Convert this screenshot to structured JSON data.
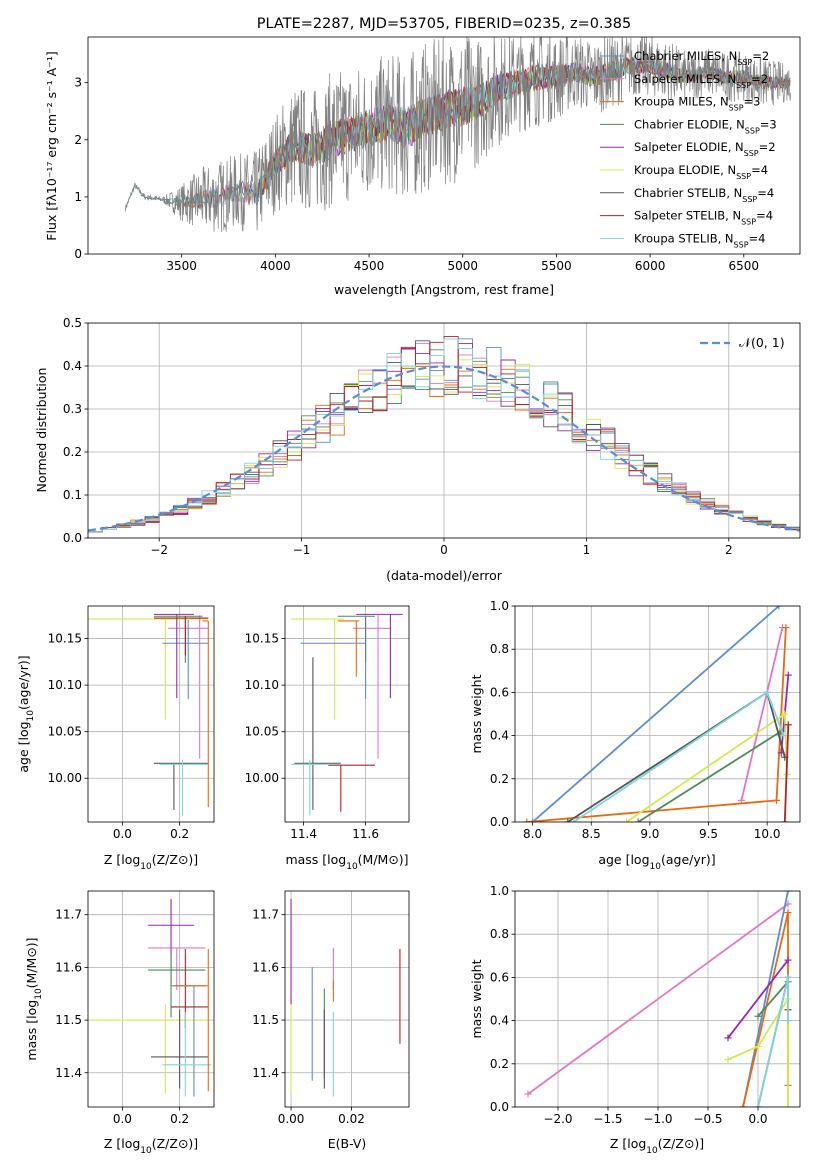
{
  "chart_data": [
    {
      "id": "spectrum",
      "type": "line",
      "title": "PLATE=2287, MJD=53705, FIBERID=0235, z=0.385",
      "xlabel": "wavelength [Angstrom, rest frame]",
      "ylabel": "Flux [fλ10⁻¹⁷ erg cm⁻² s⁻¹ A⁻¹]",
      "xlim": [
        3000,
        6800
      ],
      "ylim": [
        0,
        3.8
      ],
      "xticks": [
        3500,
        4000,
        4500,
        5000,
        5500,
        6000,
        6500
      ],
      "yticks": [
        0,
        1,
        2,
        3
      ],
      "legend_position": "upper-right",
      "data_curve": {
        "x": [
          3200,
          3250,
          3300,
          3400,
          3500,
          3600,
          3700,
          3800,
          3900,
          4000,
          4100,
          4200,
          4300,
          4400,
          4500,
          4600,
          4700,
          4800,
          4900,
          5000,
          5100,
          5200,
          5300,
          5400,
          5500,
          5600,
          5700,
          5800,
          5900,
          6000,
          6100,
          6200,
          6300,
          6400,
          6500,
          6600,
          6750
        ],
        "y": [
          0.8,
          1.2,
          1.0,
          0.95,
          0.9,
          0.95,
          1.0,
          1.1,
          1.05,
          1.6,
          1.9,
          1.8,
          2.0,
          2.1,
          2.2,
          2.3,
          2.2,
          2.4,
          2.5,
          2.6,
          2.7,
          2.9,
          3.0,
          3.1,
          3.1,
          3.2,
          3.1,
          3.2,
          3.3,
          3.3,
          3.2,
          3.1,
          3.2,
          3.1,
          3.1,
          3.0,
          3.0
        ],
        "noise": [
          0.05,
          0.05,
          0.05,
          0.05,
          0.3,
          0.5,
          0.6,
          0.6,
          0.7,
          0.8,
          1.0,
          1.0,
          1.1,
          1.1,
          1.1,
          1.1,
          1.2,
          1.2,
          1.2,
          1.2,
          1.0,
          0.9,
          0.8,
          0.8,
          0.7,
          0.6,
          0.6,
          0.6,
          0.5,
          0.5,
          0.5,
          0.4,
          0.4,
          0.4,
          0.4,
          0.4,
          0.3
        ]
      },
      "series": [
        {
          "name": "Chabrier MILES, N_SSP=2",
          "label_main": "Chabrier MILES, N",
          "label_sub": "SSP",
          "label_end": "=2",
          "color": "#5b8cd6"
        },
        {
          "name": "Salpeter MILES, N_SSP=2",
          "label_main": "Salpeter MILES, N",
          "label_sub": "SSP",
          "label_end": "=2",
          "color": "#e377c2"
        },
        {
          "name": "Kroupa MILES, N_SSP=3",
          "label_main": "Kroupa MILES, N",
          "label_sub": "SSP",
          "label_end": "=3",
          "color": "#e86a10"
        },
        {
          "name": "Chabrier ELODIE, N_SSP=3",
          "label_main": "Chabrier ELODIE, N",
          "label_sub": "SSP",
          "label_end": "=3",
          "color": "#4f8a5b"
        },
        {
          "name": "Salpeter ELODIE, N_SSP=2",
          "label_main": "Salpeter ELODIE, N",
          "label_sub": "SSP",
          "label_end": "=2",
          "color": "#9a27b0"
        },
        {
          "name": "Kroupa ELODIE, N_SSP=4",
          "label_main": "Kroupa ELODIE, N",
          "label_sub": "SSP",
          "label_end": "=4",
          "color": "#d7e84a"
        },
        {
          "name": "Chabrier STELIB, N_SSP=4",
          "label_main": "Chabrier STELIB, N",
          "label_sub": "SSP",
          "label_end": "=4",
          "color": "#555555"
        },
        {
          "name": "Salpeter STELIB, N_SSP=4",
          "label_main": "Salpeter STELIB, N",
          "label_sub": "SSP",
          "label_end": "=4",
          "color": "#b22222"
        },
        {
          "name": "Kroupa STELIB, N_SSP=4",
          "label_main": "Kroupa STELIB, N",
          "label_sub": "SSP",
          "label_end": "=4",
          "color": "#80d4e0"
        }
      ]
    },
    {
      "id": "residuals",
      "type": "histogram",
      "xlabel": "(data-model)/error",
      "ylabel": "Normed distribution",
      "xlim": [
        -2.5,
        2.5
      ],
      "ylim": [
        0,
        0.5
      ],
      "xticks": [
        -2,
        -1,
        0,
        1,
        2
      ],
      "yticks": [
        0.0,
        0.1,
        0.2,
        0.3,
        0.4,
        0.5
      ],
      "grid": true,
      "bin_width": 0.1,
      "legend_position": "upper-right",
      "normal_label": "𝒩(0, 1)",
      "normal_color": "#5b8cd6"
    },
    {
      "id": "age_vs_Z",
      "type": "errorbar",
      "xlabel_main": "Z [log",
      "xlabel_sub": "10",
      "xlabel_end": "(Z/Z⊙)]",
      "ylabel_main": "age  [log",
      "ylabel_sub": "10",
      "ylabel_end": "(age/yr)]",
      "xlim": [
        -0.12,
        0.32
      ],
      "ylim": [
        9.953,
        10.185
      ],
      "xticks": [
        0.0,
        0.2
      ],
      "yticks": [
        10.0,
        10.05,
        10.1,
        10.15
      ],
      "grid": true,
      "points": [
        {
          "color": "#d7e84a",
          "x": 0.15,
          "xerr": [
            0.27,
            0.15
          ],
          "y": 10.171,
          "yerr": [
            0.108,
            0
          ]
        },
        {
          "color": "#e377c2",
          "x": 0.27,
          "xerr": [
            0.11,
            0.03
          ],
          "y": 10.161,
          "yerr": [
            0.14,
            0.014
          ]
        },
        {
          "color": "#5b8cd6",
          "x": 0.23,
          "xerr": [
            0.09,
            0.07
          ],
          "y": 10.145,
          "yerr": [
            0.06,
            0.025
          ]
        },
        {
          "color": "#9a27b0",
          "x": 0.19,
          "xerr": [
            0.08,
            0.06
          ],
          "y": 10.176,
          "yerr": [
            0.09,
            0
          ]
        },
        {
          "color": "#4f8a5b",
          "x": 0.22,
          "xerr": [
            0.11,
            0.06
          ],
          "y": 10.174,
          "yerr": [
            0.05,
            0
          ]
        },
        {
          "color": "#555555",
          "x": 0.18,
          "xerr": [
            0.07,
            0.12
          ],
          "y": 10.016,
          "yerr": [
            0.05,
            0
          ]
        },
        {
          "color": "#b22222",
          "x": 0.22,
          "xerr": [
            0.11,
            0.08
          ],
          "y": 10.172,
          "yerr": [
            0.04,
            0.002
          ]
        },
        {
          "color": "#80d4e0",
          "x": 0.21,
          "xerr": [
            0.08,
            0.09
          ],
          "y": 10.015,
          "yerr": [
            0.055,
            0.005
          ]
        },
        {
          "color": "#e86a10",
          "x": 0.3,
          "xerr": [
            0.02,
            0
          ],
          "y": 10.169,
          "yerr": [
            0.2,
            0
          ]
        }
      ]
    },
    {
      "id": "age_vs_mass",
      "type": "errorbar",
      "xlabel_main": "mass [log",
      "xlabel_sub": "10",
      "xlabel_end": "(M/M⊙)]",
      "xlim": [
        11.34,
        11.74
      ],
      "ylim": [
        9.953,
        10.185
      ],
      "xticks": [
        11.4,
        11.6
      ],
      "yticks": [
        10.0,
        10.05,
        10.1,
        10.15
      ],
      "grid": true,
      "points": [
        {
          "color": "#d7e84a",
          "x": 11.5,
          "xerr": [
            0.14,
            0.03
          ],
          "y": 10.171,
          "yerr": [
            0.108,
            0
          ]
        },
        {
          "color": "#e377c2",
          "x": 11.64,
          "xerr": [
            0.08,
            0.04
          ],
          "y": 10.161,
          "yerr": [
            0.14,
            0.014
          ]
        },
        {
          "color": "#5b8cd6",
          "x": 11.6,
          "xerr": [
            0.21,
            0
          ],
          "y": 10.145,
          "yerr": [
            0.06,
            0.025
          ]
        },
        {
          "color": "#9a27b0",
          "x": 11.68,
          "xerr": [
            0.11,
            0.04
          ],
          "y": 10.176,
          "yerr": [
            0.09,
            0
          ]
        },
        {
          "color": "#4f8a5b",
          "x": 11.6,
          "xerr": [
            0.09,
            0.03
          ],
          "y": 10.174,
          "yerr": [
            0.05,
            0
          ]
        },
        {
          "color": "#555555",
          "x": 11.43,
          "xerr": [
            0.06,
            0.09
          ],
          "y": 10.016,
          "yerr": [
            0.05,
            0.114
          ]
        },
        {
          "color": "#b22222",
          "x": 11.52,
          "xerr": [
            0.04,
            0.11
          ],
          "y": 10.014,
          "yerr": [
            0.05,
            0
          ]
        },
        {
          "color": "#80d4e0",
          "x": 11.42,
          "xerr": [
            0.06,
            0.1
          ],
          "y": 10.015,
          "yerr": [
            0.055,
            0.005
          ]
        },
        {
          "color": "#e86a10",
          "x": 11.57,
          "xerr": [
            0.06,
            0.01
          ],
          "y": 10.169,
          "yerr": [
            0.06,
            0
          ]
        }
      ]
    },
    {
      "id": "mass_weight_vs_age",
      "type": "line",
      "xlabel_main": "age  [log",
      "xlabel_sub": "10",
      "xlabel_end": "(age/yr)]",
      "ylabel": "mass weight",
      "xlim": [
        7.85,
        10.28
      ],
      "ylim": [
        0,
        1
      ],
      "xticks": [
        8.0,
        8.5,
        9.0,
        9.5,
        10.0
      ],
      "yticks": [
        0.0,
        0.2,
        0.4,
        0.6,
        0.8,
        1.0
      ],
      "grid": true,
      "series": [
        {
          "color": "#5b8cd6",
          "x": [
            8.0,
            10.1
          ],
          "y": [
            0.0,
            1.0
          ]
        },
        {
          "color": "#e377c2",
          "x": [
            9.78,
            10.13
          ],
          "y": [
            0.1,
            0.9
          ]
        },
        {
          "color": "#e86a10",
          "x": [
            7.95,
            10.08,
            10.16
          ],
          "y": [
            0.0,
            0.1,
            0.9
          ]
        },
        {
          "color": "#4f8a5b",
          "x": [
            8.9,
            10.12
          ],
          "y": [
            0.0,
            0.42
          ]
        },
        {
          "color": "#9a27b0",
          "x": [
            10.12,
            10.18
          ],
          "y": [
            0.32,
            0.68
          ]
        },
        {
          "color": "#d7e84a",
          "x": [
            8.8,
            10.15,
            10.17
          ],
          "y": [
            0.0,
            0.5,
            0.22
          ]
        },
        {
          "color": "#555555",
          "x": [
            8.3,
            10.0,
            10.15
          ],
          "y": [
            0.0,
            0.6,
            0.3
          ]
        },
        {
          "color": "#b22222",
          "x": [
            10.15,
            10.18
          ],
          "y": [
            0.0,
            0.45
          ]
        },
        {
          "color": "#80d4e0",
          "x": [
            8.35,
            10.0,
            10.14
          ],
          "y": [
            0.0,
            0.6,
            0.4
          ]
        }
      ]
    },
    {
      "id": "mass_vs_Z",
      "type": "errorbar",
      "xlabel_main": "Z [log",
      "xlabel_sub": "10",
      "xlabel_end": "(Z/Z⊙)]",
      "ylabel_main": "mass [log",
      "ylabel_sub": "10",
      "ylabel_end": "(M/M⊙)]",
      "xlim": [
        -0.12,
        0.32
      ],
      "ylim": [
        11.335,
        11.745
      ],
      "xticks": [
        0.0,
        0.2
      ],
      "yticks": [
        11.4,
        11.5,
        11.6,
        11.7
      ],
      "grid": true,
      "points": [
        {
          "color": "#d7e84a",
          "x": 0.15,
          "xerr": [
            0.27,
            0.15
          ],
          "y": 11.5,
          "yerr": [
            0.14,
            0.03
          ]
        },
        {
          "color": "#e377c2",
          "x": 0.19,
          "xerr": [
            0.1,
            0.1
          ],
          "y": 11.637,
          "yerr": [
            0.08,
            0
          ]
        },
        {
          "color": "#5b8cd6",
          "x": 0.25,
          "xerr": [
            0.08,
            0.04
          ],
          "y": 11.565,
          "yerr": [
            0.21,
            0
          ]
        },
        {
          "color": "#9a27b0",
          "x": 0.17,
          "xerr": [
            0.08,
            0.08
          ],
          "y": 11.68,
          "yerr": [
            0.11,
            0.05
          ]
        },
        {
          "color": "#4f8a5b",
          "x": 0.17,
          "xerr": [
            0.08,
            0.12
          ],
          "y": 11.595,
          "yerr": [
            0.09,
            0.03
          ]
        },
        {
          "color": "#555555",
          "x": 0.2,
          "xerr": [
            0.1,
            0.1
          ],
          "y": 11.43,
          "yerr": [
            0.06,
            0.09
          ]
        },
        {
          "color": "#b22222",
          "x": 0.22,
          "xerr": [
            0.05,
            0.08
          ],
          "y": 11.525,
          "yerr": [
            0.04,
            0.11
          ]
        },
        {
          "color": "#80d4e0",
          "x": 0.22,
          "xerr": [
            0.08,
            0.09
          ],
          "y": 11.415,
          "yerr": [
            0.06,
            0.1
          ]
        },
        {
          "color": "#e86a10",
          "x": 0.3,
          "xerr": [
            0.12,
            0
          ],
          "y": 11.565,
          "yerr": [
            0.2,
            0.07
          ]
        }
      ]
    },
    {
      "id": "mass_vs_ebv",
      "type": "errorbar",
      "xlabel": "E(B-V)",
      "xlim": [
        -0.002,
        0.039
      ],
      "ylim": [
        11.335,
        11.745
      ],
      "xticks": [
        0.0,
        0.02
      ],
      "yticks": [
        11.4,
        11.5,
        11.6,
        11.7
      ],
      "grid": true,
      "points": [
        {
          "color": "#d7e84a",
          "x": 0.0,
          "y": 11.5,
          "yerr": [
            0.14,
            0.03
          ]
        },
        {
          "color": "#e377c2",
          "x": 0.014,
          "y": 11.637,
          "yerr": [
            0.08,
            0
          ]
        },
        {
          "color": "#5b8cd6",
          "x": 0.007,
          "y": 11.565,
          "yerr": [
            0.18,
            0.035
          ]
        },
        {
          "color": "#9a27b0",
          "x": 0.0,
          "y": 11.68,
          "yerr": [
            0.15,
            0.05
          ]
        },
        {
          "color": "#4f8a5b",
          "x": 0.011,
          "y": 11.48,
          "yerr": [
            0.09,
            0.08
          ]
        },
        {
          "color": "#555555",
          "x": 0.011,
          "y": 11.43,
          "yerr": [
            0.06,
            0.09
          ]
        },
        {
          "color": "#b22222",
          "x": 0.036,
          "y": 11.525,
          "yerr": [
            0.07,
            0.11
          ]
        },
        {
          "color": "#80d4e0",
          "x": 0.014,
          "y": 11.415,
          "yerr": [
            0.06,
            0.1
          ]
        },
        {
          "color": "#e86a10",
          "x": 0.014,
          "y": 11.565,
          "yerr": [
            0.03,
            0.01
          ]
        }
      ]
    },
    {
      "id": "mass_weight_vs_Z",
      "type": "line",
      "xlabel_main": "Z [log",
      "xlabel_sub": "10",
      "xlabel_end": "(Z/Z⊙)]",
      "ylabel": "mass weight",
      "xlim": [
        -2.43,
        0.42
      ],
      "ylim": [
        0,
        1
      ],
      "xticks": [
        -2.0,
        -1.5,
        -1.0,
        -0.5,
        0.0
      ],
      "yticks": [
        0.0,
        0.2,
        0.4,
        0.6,
        0.8,
        1.0
      ],
      "grid": true,
      "series": [
        {
          "color": "#e377c2",
          "x": [
            -2.3,
            0.3
          ],
          "y": [
            0.06,
            0.94
          ]
        },
        {
          "color": "#5b8cd6",
          "x": [
            -0.15,
            0.3
          ],
          "y": [
            0.0,
            1.0
          ]
        },
        {
          "color": "#e86a10",
          "x": [
            -0.15,
            0.3,
            0.3
          ],
          "y": [
            0.0,
            0.9,
            0.1
          ]
        },
        {
          "color": "#4f8a5b",
          "x": [
            0.0,
            0.3
          ],
          "y": [
            0.42,
            0.58
          ]
        },
        {
          "color": "#9a27b0",
          "x": [
            -0.3,
            0.3
          ],
          "y": [
            0.32,
            0.68
          ]
        },
        {
          "color": "#d7e84a",
          "x": [
            -0.3,
            0.0,
            0.3,
            0.3
          ],
          "y": [
            0.22,
            0.28,
            0.5,
            0.0
          ]
        },
        {
          "color": "#555555",
          "x": [
            0.0,
            0.3
          ],
          "y": [
            0.0,
            0.6
          ]
        },
        {
          "color": "#b22222",
          "x": [
            0.3
          ],
          "y": [
            0.45
          ]
        },
        {
          "color": "#80d4e0",
          "x": [
            0.0,
            0.3,
            0.3
          ],
          "y": [
            0.0,
            0.6,
            0.4
          ]
        }
      ]
    }
  ]
}
